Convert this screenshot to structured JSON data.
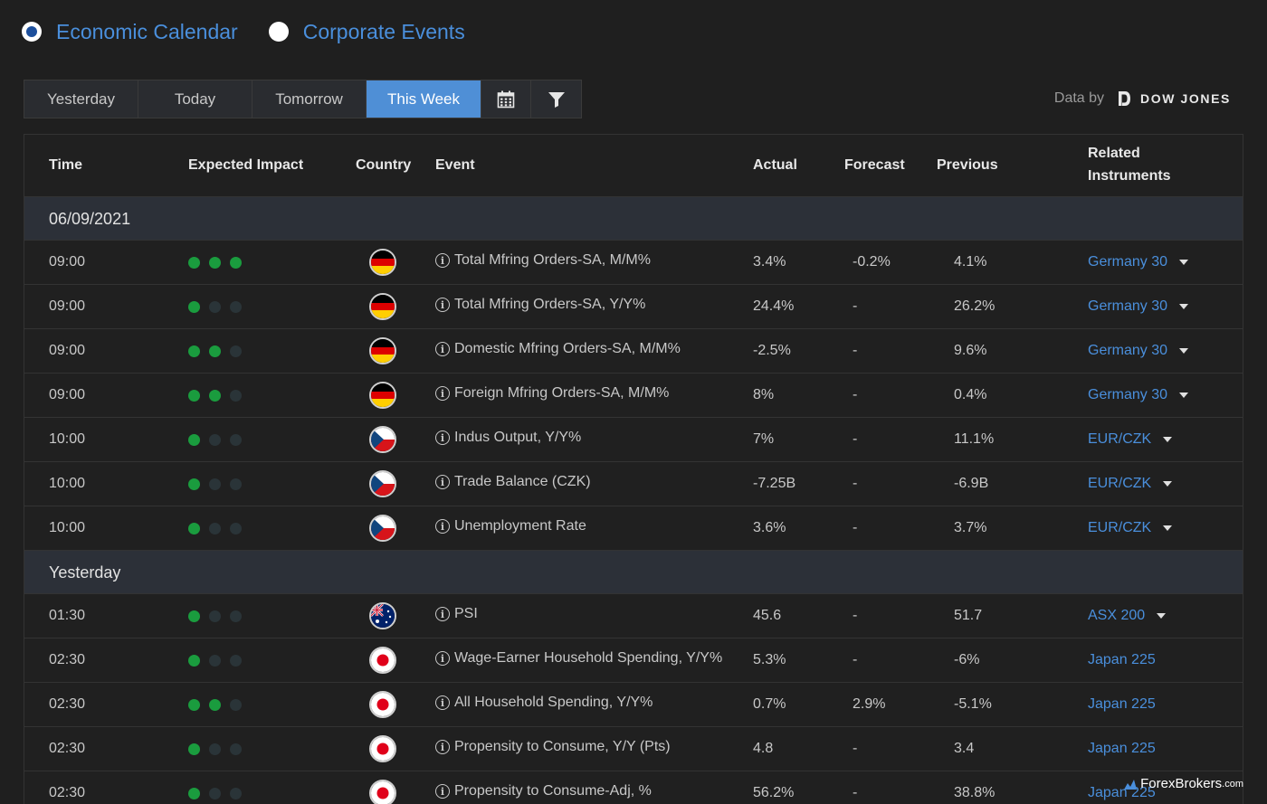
{
  "tabs": {
    "economic_calendar": "Economic Calendar",
    "corporate_events": "Corporate Events"
  },
  "toolbar": {
    "yesterday": "Yesterday",
    "today": "Today",
    "tomorrow": "Tomorrow",
    "this_week": "This Week",
    "calendar_icon": "calendar-icon",
    "filter_icon": "filter-icon"
  },
  "data_by": {
    "label": "Data by",
    "provider": "DOW JONES"
  },
  "columns": {
    "time": "Time",
    "impact": "Expected Impact",
    "country": "Country",
    "event": "Event",
    "actual": "Actual",
    "forecast": "Forecast",
    "previous": "Previous",
    "related_line1": "Related",
    "related_line2": "Instruments"
  },
  "groups": [
    {
      "label": "06/09/2021",
      "rows": [
        {
          "time": "09:00",
          "impact": 3,
          "flag": "de",
          "event": "Total Mfring Orders-SA, M/M%",
          "actual": "3.4%",
          "forecast": "-0.2%",
          "previous": "4.1%",
          "related": "Germany 30",
          "dropdown": true
        },
        {
          "time": "09:00",
          "impact": 1,
          "flag": "de",
          "event": "Total Mfring Orders-SA, Y/Y%",
          "actual": "24.4%",
          "forecast": "-",
          "previous": "26.2%",
          "related": "Germany 30",
          "dropdown": true
        },
        {
          "time": "09:00",
          "impact": 2,
          "flag": "de",
          "event": "Domestic Mfring Orders-SA, M/M%",
          "actual": "-2.5%",
          "forecast": "-",
          "previous": "9.6%",
          "related": "Germany 30",
          "dropdown": true
        },
        {
          "time": "09:00",
          "impact": 2,
          "flag": "de",
          "event": "Foreign Mfring Orders-SA, M/M%",
          "actual": "8%",
          "forecast": "-",
          "previous": "0.4%",
          "related": "Germany 30",
          "dropdown": true
        },
        {
          "time": "10:00",
          "impact": 1,
          "flag": "cz",
          "event": "Indus Output, Y/Y%",
          "actual": "7%",
          "forecast": "-",
          "previous": "11.1%",
          "related": "EUR/CZK",
          "dropdown": true
        },
        {
          "time": "10:00",
          "impact": 1,
          "flag": "cz",
          "event": "Trade Balance (CZK)",
          "actual": "-7.25B",
          "forecast": "-",
          "previous": "-6.9B",
          "related": "EUR/CZK",
          "dropdown": true
        },
        {
          "time": "10:00",
          "impact": 1,
          "flag": "cz",
          "event": "Unemployment Rate",
          "actual": "3.6%",
          "forecast": "-",
          "previous": "3.7%",
          "related": "EUR/CZK",
          "dropdown": true
        }
      ]
    },
    {
      "label": "Yesterday",
      "rows": [
        {
          "time": "01:30",
          "impact": 1,
          "flag": "au",
          "event": "PSI",
          "actual": "45.6",
          "forecast": "-",
          "previous": "51.7",
          "related": "ASX 200",
          "dropdown": true
        },
        {
          "time": "02:30",
          "impact": 1,
          "flag": "jp",
          "event": "Wage-Earner Household Spending, Y/Y%",
          "actual": "5.3%",
          "forecast": "-",
          "previous": "-6%",
          "related": "Japan 225",
          "dropdown": false
        },
        {
          "time": "02:30",
          "impact": 2,
          "flag": "jp",
          "event": "All Household Spending, Y/Y%",
          "actual": "0.7%",
          "forecast": "2.9%",
          "previous": "-5.1%",
          "related": "Japan 225",
          "dropdown": false
        },
        {
          "time": "02:30",
          "impact": 1,
          "flag": "jp",
          "event": "Propensity to Consume, Y/Y (Pts)",
          "actual": "4.8",
          "forecast": "-",
          "previous": "3.4",
          "related": "Japan 225",
          "dropdown": false
        },
        {
          "time": "02:30",
          "impact": 1,
          "flag": "jp",
          "event": "Propensity to Consume-Adj, %",
          "actual": "56.2%",
          "forecast": "-",
          "previous": "38.8%",
          "related": "Japan 225",
          "dropdown": false
        }
      ]
    }
  ],
  "watermark": "ForexBrokers",
  "watermark_suffix": ".com",
  "colors": {
    "accent": "#4a8fdc",
    "active_tab": "#4f8fd6",
    "impact_on": "#1a9c3e",
    "impact_off": "#2a3438",
    "group_bg": "#2c3038"
  }
}
